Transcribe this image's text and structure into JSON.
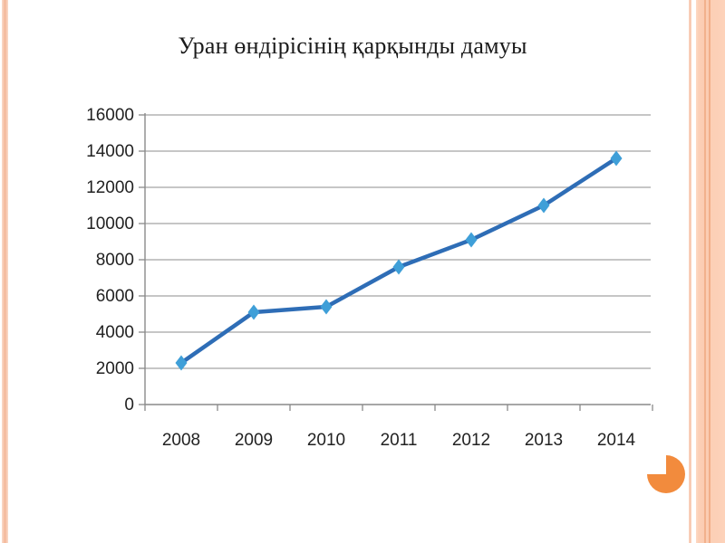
{
  "slide": {
    "title": "Уран өндірісінің қарқынды дамуы"
  },
  "chart_data": {
    "type": "line",
    "title": "Уран өндірісінің қарқынды дамуы",
    "categories": [
      "2008",
      "2009",
      "2010",
      "2011",
      "2012",
      "2013",
      "2014"
    ],
    "values": [
      2300,
      5100,
      5400,
      7600,
      9100,
      11000,
      13600
    ],
    "yticks": [
      0,
      2000,
      4000,
      6000,
      8000,
      10000,
      12000,
      14000,
      16000
    ],
    "ylim": [
      0,
      16000
    ],
    "xlabel": "",
    "ylabel": "",
    "grid": true,
    "legend": false,
    "marker_shape": "diamond",
    "line_color": "#2e6db6",
    "marker_color": "#3f9fd8",
    "gridline_color": "#a3a3a3",
    "axis_color": "#8a8a8a",
    "tick_label_color": "#222222"
  },
  "ornaments": {
    "pacman_color": "#f28b3d",
    "stripe_light": "#fbd5c0",
    "stripe_dark": "#f2b18c"
  }
}
